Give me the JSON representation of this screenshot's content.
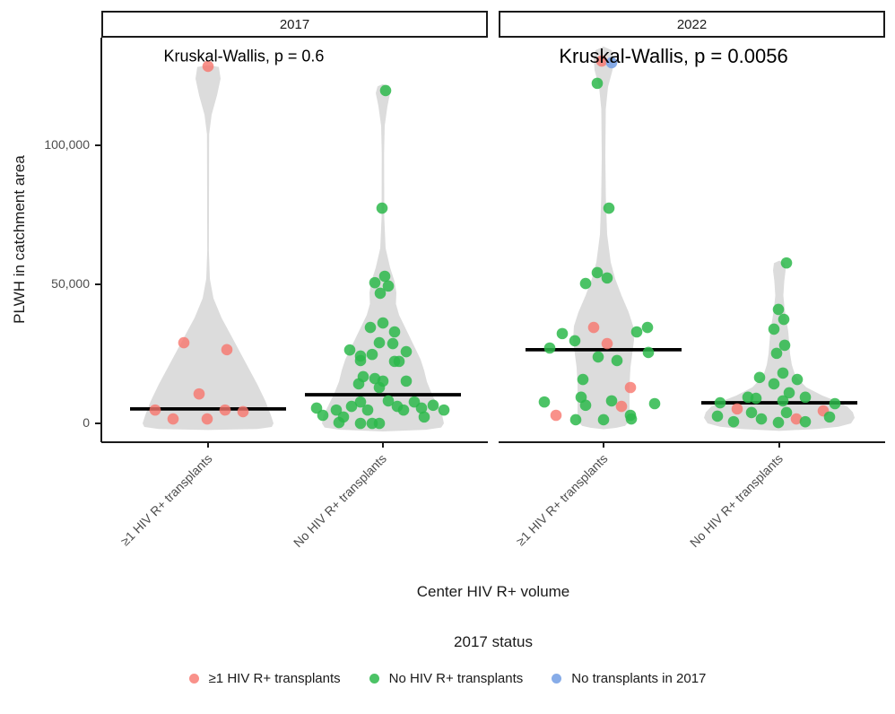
{
  "y_axis": {
    "title": "PLWH in catchment area",
    "ticks": [
      {
        "label": "0",
        "value": 0
      },
      {
        "label": "50,000",
        "value": 50000
      },
      {
        "label": "100,000",
        "value": 100000
      }
    ]
  },
  "x_axis": {
    "title": "Center HIV R+ volume",
    "categories": [
      "≥1 HIV R+ transplants",
      "No HIV R+ transplants"
    ]
  },
  "legend": {
    "title": "2017 status",
    "items": [
      {
        "status": "r",
        "label": "≥1 HIV R+ transplants"
      },
      {
        "status": "g",
        "label": "No HIV R+ transplants"
      },
      {
        "status": "b",
        "label": "No transplants in 2017"
      }
    ]
  },
  "colors": {
    "r": "rgba(248,118,109,0.8)",
    "g": "rgba(45,184,75,0.85)",
    "b": "rgba(122,163,229,0.9)",
    "violin": "#DCDCDC",
    "median": "#000000",
    "axis_line": "#1a1a1a",
    "axis_text": "#4d4d4d"
  },
  "chart_data": {
    "type": "violin+jitter",
    "ylabel": "PLWH in catchment area",
    "xlabel": "Center HIV R+ volume",
    "ylim": [
      -3000,
      138000
    ],
    "y_tick_values": [
      0,
      50000,
      100000
    ],
    "legend_title": "2017 status",
    "point_statuses": {
      "r": "≥1 HIV R+ transplants (2017)",
      "g": "No HIV R+ transplants (2017)",
      "b": "No transplants in 2017"
    },
    "facets": [
      {
        "label": "2017",
        "annotation": "Kruskal-Wallis, p = 0.6",
        "groups": [
          {
            "category": "≥1 HIV R+ transplants",
            "median": 5200,
            "points": [
              [
                0,
                128400,
                "r"
              ],
              [
                -27,
                29000,
                "r"
              ],
              [
                21,
                26500,
                "r"
              ],
              [
                -10,
                10600,
                "r"
              ],
              [
                -59,
                4800,
                "r"
              ],
              [
                19,
                4800,
                "r"
              ],
              [
                39,
                4200,
                "r"
              ],
              [
                -39,
                1600,
                "r"
              ],
              [
                -1,
                1600,
                "r"
              ]
            ],
            "violin": [
              [
                128800,
                0
              ],
              [
                128200,
                12
              ],
              [
                124000,
                14
              ],
              [
                118000,
                10
              ],
              [
                111000,
                4
              ],
              [
                104000,
                1.2
              ],
              [
                62000,
                0.9
              ],
              [
                52000,
                2
              ],
              [
                45000,
                6
              ],
              [
                38000,
                15
              ],
              [
                32000,
                25
              ],
              [
                26000,
                35
              ],
              [
                20000,
                45
              ],
              [
                14000,
                55
              ],
              [
                8000,
                64
              ],
              [
                3000,
                70
              ],
              [
                0,
                73
              ],
              [
                -1300,
                71
              ],
              [
                -2000,
                55
              ],
              [
                -2400,
                0
              ]
            ]
          },
          {
            "category": "No HIV R+ transplants",
            "median": 10300,
            "points": [
              [
                3,
                119700,
                "g"
              ],
              [
                -1,
                77400,
                "g"
              ],
              [
                2,
                52900,
                "g"
              ],
              [
                -9,
                50600,
                "g"
              ],
              [
                6,
                49400,
                "g"
              ],
              [
                -3,
                46800,
                "g"
              ],
              [
                0,
                36100,
                "g"
              ],
              [
                -14,
                34500,
                "g"
              ],
              [
                13,
                32900,
                "g"
              ],
              [
                -4,
                29000,
                "g"
              ],
              [
                11,
                28700,
                "g"
              ],
              [
                -37,
                26400,
                "g"
              ],
              [
                26,
                25800,
                "g"
              ],
              [
                -12,
                24800,
                "g"
              ],
              [
                -25,
                24200,
                "g"
              ],
              [
                -25,
                22600,
                "g"
              ],
              [
                13,
                22300,
                "g"
              ],
              [
                18,
                22300,
                "g"
              ],
              [
                -22,
                16800,
                "g"
              ],
              [
                -9,
                16100,
                "g"
              ],
              [
                0,
                15200,
                "g"
              ],
              [
                26,
                15200,
                "g"
              ],
              [
                -27,
                14200,
                "g"
              ],
              [
                -4,
                12900,
                "g"
              ],
              [
                -74,
                5500,
                "g"
              ],
              [
                -67,
                2900,
                "g"
              ],
              [
                -52,
                4800,
                "g"
              ],
              [
                -49,
                300,
                "g"
              ],
              [
                -44,
                2300,
                "g"
              ],
              [
                -35,
                6100,
                "g"
              ],
              [
                -25,
                7700,
                "g"
              ],
              [
                -25,
                0,
                "g"
              ],
              [
                -17,
                4800,
                "g"
              ],
              [
                -12,
                0,
                "g"
              ],
              [
                -4,
                0,
                "g"
              ],
              [
                6,
                8100,
                "g"
              ],
              [
                16,
                6100,
                "g"
              ],
              [
                23,
                4800,
                "g"
              ],
              [
                35,
                7700,
                "g"
              ],
              [
                43,
                5500,
                "g"
              ],
              [
                46,
                2300,
                "g"
              ],
              [
                56,
                6500,
                "g"
              ],
              [
                68,
                4800,
                "g"
              ]
            ],
            "violin": [
              [
                122000,
                0
              ],
              [
                121200,
                6
              ],
              [
                118800,
                8
              ],
              [
                114000,
                5
              ],
              [
                107000,
                2
              ],
              [
                97000,
                1.3
              ],
              [
                74000,
                1.5
              ],
              [
                63000,
                3
              ],
              [
                56000,
                8
              ],
              [
                51000,
                13
              ],
              [
                47000,
                15
              ],
              [
                43000,
                14.5
              ],
              [
                39000,
                18
              ],
              [
                35000,
                24
              ],
              [
                31000,
                30
              ],
              [
                27000,
                36
              ],
              [
                23000,
                42
              ],
              [
                19000,
                46
              ],
              [
                15000,
                49
              ],
              [
                11000,
                54
              ],
              [
                7000,
                60
              ],
              [
                3000,
                66
              ],
              [
                0,
                68
              ],
              [
                -1500,
                65
              ],
              [
                -2300,
                48
              ],
              [
                -2900,
                0
              ]
            ]
          }
        ]
      },
      {
        "label": "2022",
        "annotation": "Kruskal-Wallis, p = 0.0056",
        "groups": [
          {
            "category": "≥1 HIV R+ transplants",
            "median": 26500,
            "points": [
              [
                -2,
                130300,
                "r"
              ],
              [
                9,
                129700,
                "b"
              ],
              [
                -7,
                122300,
                "g"
              ],
              [
                6,
                77400,
                "g"
              ],
              [
                -7,
                54200,
                "g"
              ],
              [
                4,
                52300,
                "g"
              ],
              [
                -20,
                50300,
                "g"
              ],
              [
                -11,
                34500,
                "r"
              ],
              [
                49,
                34500,
                "g"
              ],
              [
                37,
                32900,
                "g"
              ],
              [
                -46,
                32300,
                "g"
              ],
              [
                -32,
                29700,
                "g"
              ],
              [
                4,
                28700,
                "r"
              ],
              [
                -60,
                27100,
                "g"
              ],
              [
                50,
                25500,
                "g"
              ],
              [
                -6,
                23900,
                "g"
              ],
              [
                15,
                22600,
                "g"
              ],
              [
                -23,
                15800,
                "g"
              ],
              [
                30,
                12900,
                "r"
              ],
              [
                -25,
                9400,
                "g"
              ],
              [
                9,
                8100,
                "g"
              ],
              [
                -66,
                7700,
                "g"
              ],
              [
                57,
                7100,
                "g"
              ],
              [
                -20,
                6500,
                "g"
              ],
              [
                20,
                6100,
                "r"
              ],
              [
                -53,
                2900,
                "r"
              ],
              [
                30,
                2900,
                "g"
              ],
              [
                31,
                1600,
                "g"
              ],
              [
                -31,
                1300,
                "g"
              ],
              [
                0,
                1300,
                "g"
              ]
            ],
            "violin": [
              [
                135500,
                0
              ],
              [
                134200,
                9
              ],
              [
                131000,
                11
              ],
              [
                127000,
                10
              ],
              [
                121000,
                5
              ],
              [
                113000,
                2.5
              ],
              [
                96000,
                2
              ],
              [
                81000,
                2.6
              ],
              [
                68000,
                4
              ],
              [
                58000,
                8
              ],
              [
                52000,
                13
              ],
              [
                46000,
                20
              ],
              [
                40000,
                28
              ],
              [
                35000,
                33
              ],
              [
                30000,
                34
              ],
              [
                25000,
                32
              ],
              [
                20000,
                30
              ],
              [
                14000,
                29
              ],
              [
                8000,
                29
              ],
              [
                3000,
                29
              ],
              [
                500,
                28
              ],
              [
                -900,
                24
              ],
              [
                -1600,
                14
              ],
              [
                -2100,
                0
              ]
            ]
          },
          {
            "category": "No HIV R+ transplants",
            "median": 7400,
            "points": [
              [
                8,
                57700,
                "g"
              ],
              [
                -1,
                41000,
                "g"
              ],
              [
                5,
                37400,
                "g"
              ],
              [
                -6,
                33900,
                "g"
              ],
              [
                6,
                28100,
                "g"
              ],
              [
                -3,
                25200,
                "g"
              ],
              [
                4,
                18100,
                "g"
              ],
              [
                -22,
                16500,
                "g"
              ],
              [
                20,
                15800,
                "g"
              ],
              [
                -6,
                14200,
                "g"
              ],
              [
                11,
                11000,
                "g"
              ],
              [
                -35,
                9400,
                "g"
              ],
              [
                29,
                9400,
                "g"
              ],
              [
                -26,
                9000,
                "g"
              ],
              [
                4,
                8100,
                "g"
              ],
              [
                -66,
                7400,
                "g"
              ],
              [
                62,
                7100,
                "g"
              ],
              [
                -47,
                5200,
                "r"
              ],
              [
                49,
                4500,
                "r"
              ],
              [
                -31,
                3900,
                "g"
              ],
              [
                8,
                3900,
                "g"
              ],
              [
                -69,
                2600,
                "g"
              ],
              [
                56,
                2300,
                "g"
              ],
              [
                -20,
                1600,
                "g"
              ],
              [
                19,
                1600,
                "r"
              ],
              [
                29,
                600,
                "g"
              ],
              [
                -51,
                600,
                "g"
              ],
              [
                -1,
                300,
                "g"
              ]
            ],
            "violin": [
              [
                58500,
                0
              ],
              [
                57600,
                6
              ],
              [
                55000,
                7
              ],
              [
                51000,
                5.5
              ],
              [
                46000,
                4.5
              ],
              [
                41000,
                6
              ],
              [
                37000,
                8
              ],
              [
                33000,
                10
              ],
              [
                29000,
                11
              ],
              [
                25000,
                12
              ],
              [
                21000,
                14
              ],
              [
                17000,
                18
              ],
              [
                13000,
                30
              ],
              [
                10000,
                48
              ],
              [
                8000,
                64
              ],
              [
                6000,
                76
              ],
              [
                4000,
                82
              ],
              [
                2000,
                84
              ],
              [
                0,
                80
              ],
              [
                -1200,
                66
              ],
              [
                -2000,
                42
              ],
              [
                -2700,
                0
              ]
            ]
          }
        ]
      }
    ]
  }
}
